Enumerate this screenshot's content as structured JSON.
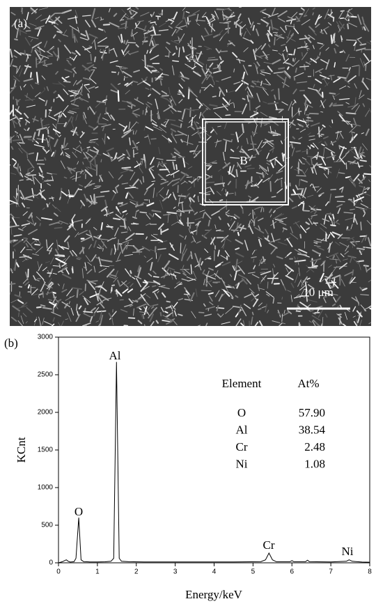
{
  "image_panel": {
    "panel_label": "(a)",
    "region_label": "B",
    "scale_bar": "10 μm"
  },
  "chart_data": {
    "type": "line",
    "panel_label": "(b)",
    "x_label": "Energy/keV",
    "y_label": "KCnt",
    "xlim": [
      0,
      8
    ],
    "ylim": [
      0,
      3000
    ],
    "xticks": [
      0,
      1,
      2,
      3,
      4,
      5,
      6,
      7,
      8
    ],
    "yticks": [
      0,
      500,
      1000,
      1500,
      2000,
      2500,
      3000
    ],
    "x": [
      0.0,
      0.1,
      0.2,
      0.25,
      0.3,
      0.4,
      0.45,
      0.52,
      0.58,
      0.65,
      0.8,
      1.0,
      1.2,
      1.35,
      1.42,
      1.49,
      1.56,
      1.62,
      1.8,
      2.2,
      2.7,
      3.5,
      4.5,
      5.2,
      5.32,
      5.41,
      5.5,
      5.6,
      5.95,
      6.0,
      6.05,
      6.35,
      6.4,
      6.45,
      7.0,
      7.4,
      7.47,
      7.55,
      7.8,
      8.0
    ],
    "series": [
      {
        "color": "#000000",
        "values": [
          0,
          15,
          40,
          20,
          10,
          15,
          60,
          600,
          40,
          15,
          12,
          12,
          14,
          20,
          60,
          2670,
          60,
          20,
          15,
          12,
          12,
          12,
          12,
          15,
          40,
          130,
          40,
          15,
          15,
          30,
          15,
          15,
          35,
          15,
          12,
          20,
          40,
          20,
          10,
          8
        ]
      }
    ],
    "annotations": [
      "O",
      "Al",
      "Cr",
      "Ni"
    ],
    "table": {
      "header": [
        "Element",
        "At%"
      ],
      "rows": [
        [
          "O",
          "57.90"
        ],
        [
          "Al",
          "38.54"
        ],
        [
          "Cr",
          "2.48"
        ],
        [
          "Ni",
          "1.08"
        ]
      ]
    }
  }
}
